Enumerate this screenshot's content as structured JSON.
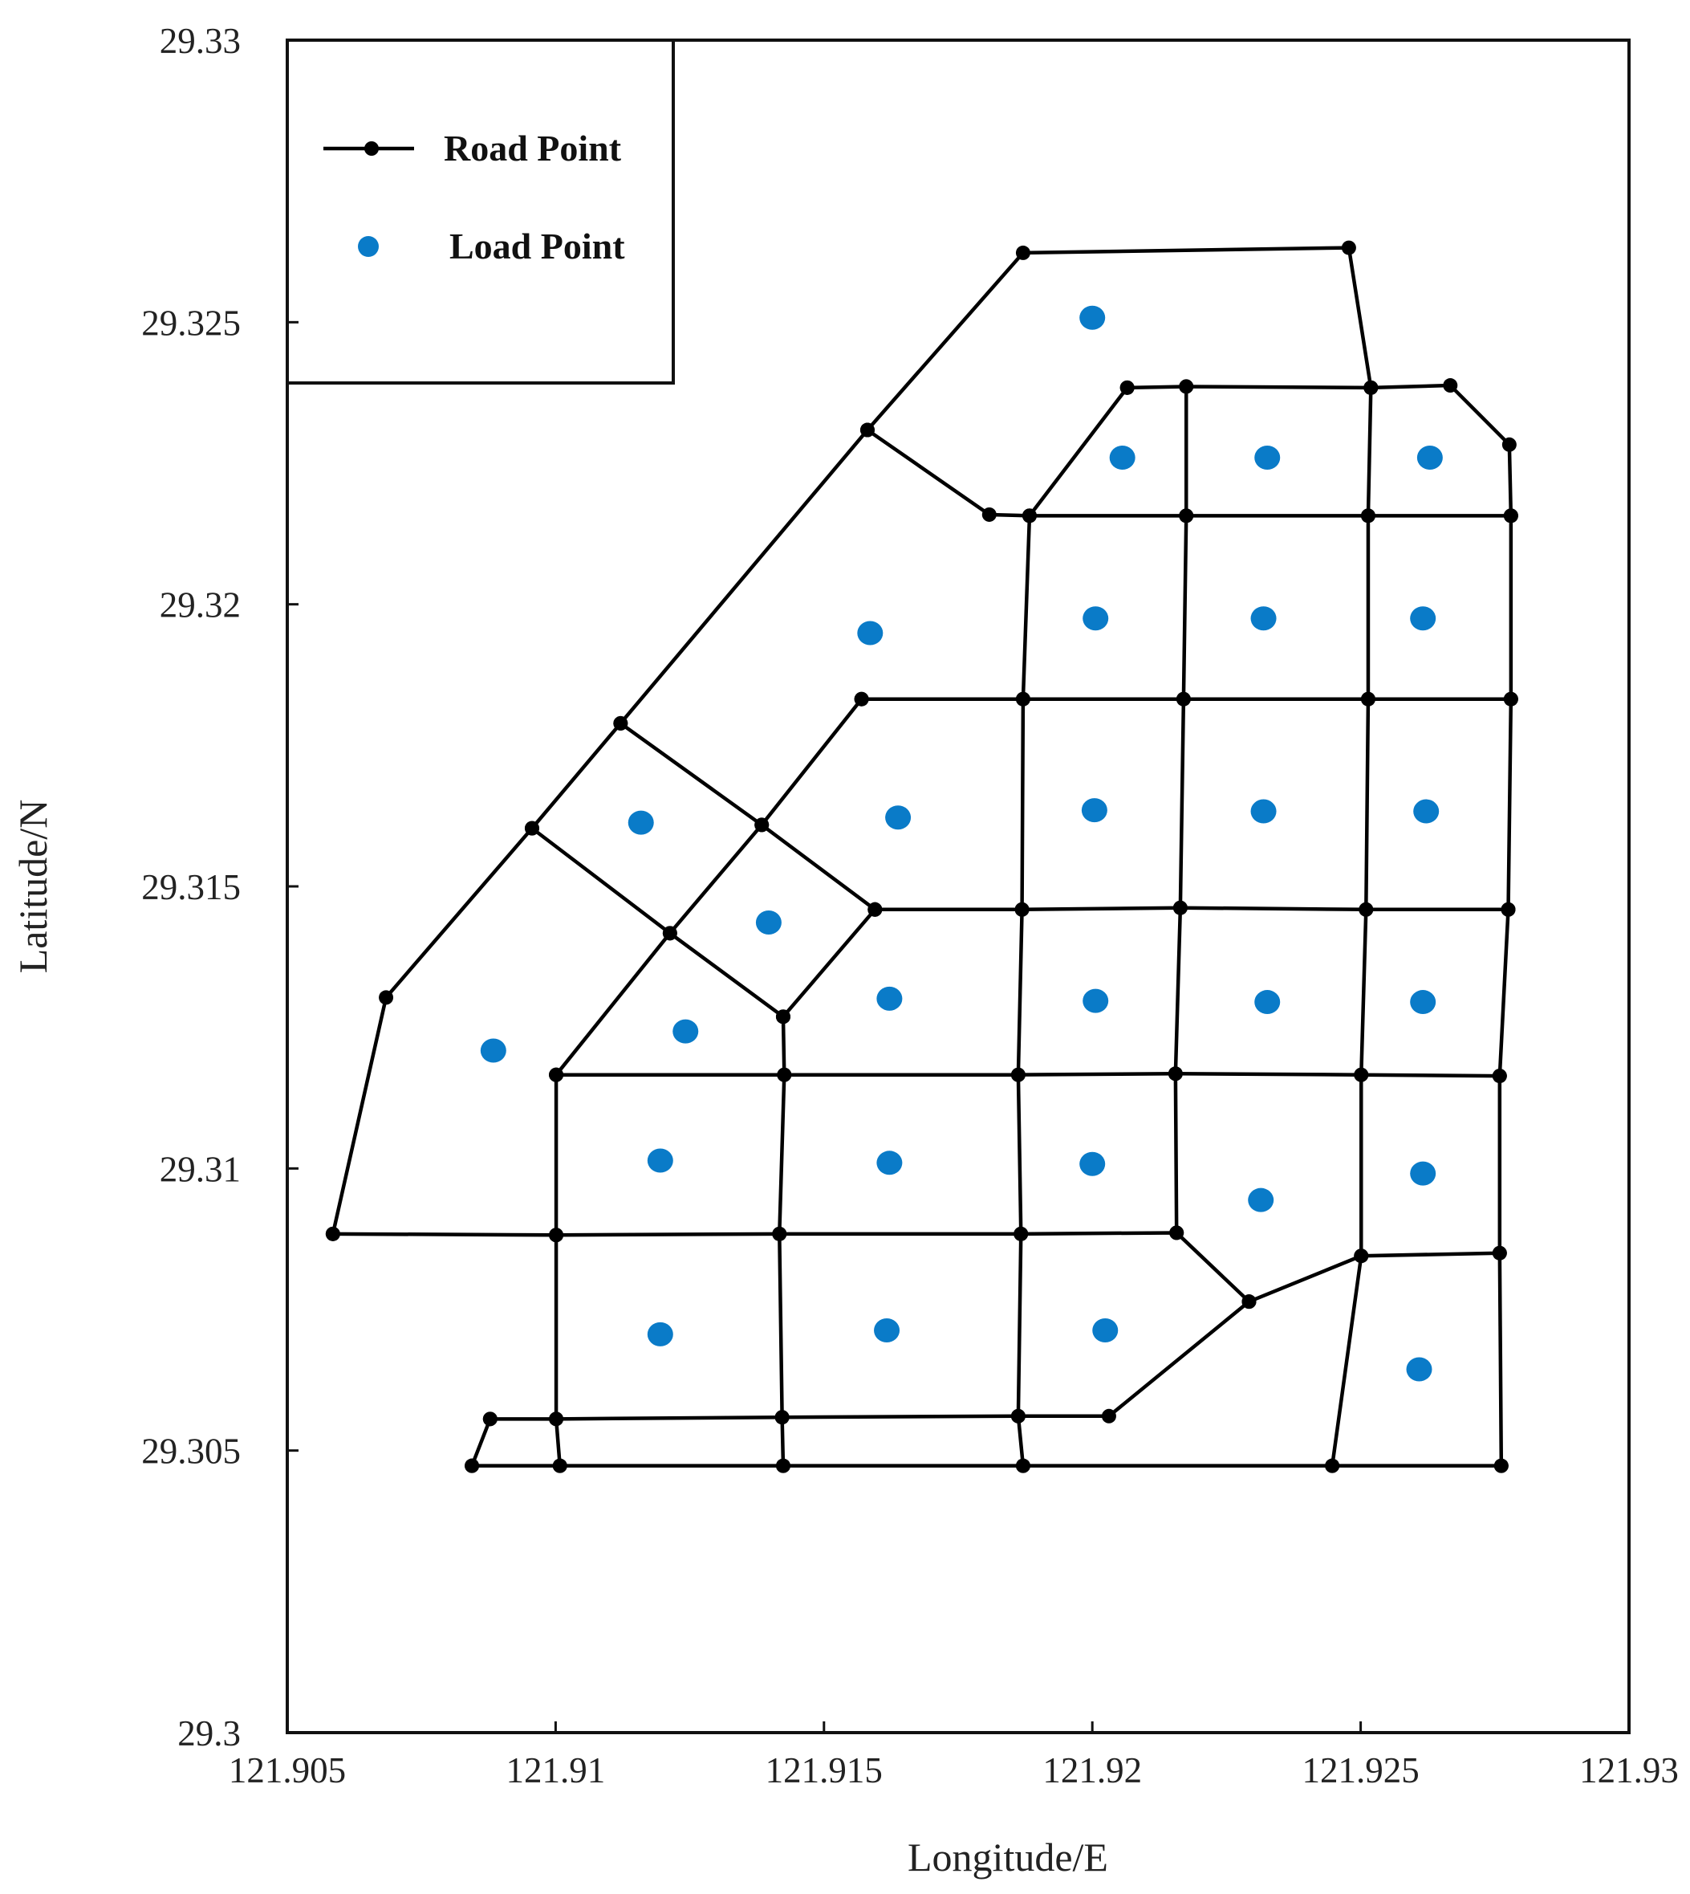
{
  "chart_data": {
    "type": "scatter",
    "xlabel": "Longitude/E",
    "ylabel": "Latitude/N",
    "xlim": [
      121.905,
      121.93
    ],
    "ylim": [
      29.3,
      29.33
    ],
    "xticks": [
      121.905,
      121.91,
      121.915,
      121.92,
      121.925,
      121.93
    ],
    "yticks": [
      29.3,
      29.305,
      29.31,
      29.315,
      29.32,
      29.325,
      29.33
    ],
    "legend": "upper left",
    "roads": {
      "name": "Road Point",
      "color": "#000000",
      "lines": [
        {
          "x": [
            121.90585,
            121.90684,
            121.90956,
            121.91121,
            121.91581,
            121.91871,
            121.92478,
            121.92519
          ],
          "y": [
            29.30884,
            29.31303,
            29.31603,
            29.31789,
            29.32309,
            29.32623,
            29.32632,
            29.32384
          ]
        },
        {
          "x": [
            121.92065,
            121.92175,
            121.92519,
            121.92667,
            121.92777,
            121.9278
          ],
          "y": [
            29.32384,
            29.32386,
            29.32384,
            29.32388,
            29.32283,
            29.32157
          ]
        },
        {
          "x": [
            121.91581,
            121.91808,
            121.91883,
            121.92175,
            121.92514,
            121.9278
          ],
          "y": [
            29.32309,
            29.32159,
            29.32157,
            29.32157,
            29.32157,
            29.32157
          ]
        },
        {
          "x": [
            121.91883,
            121.92065
          ],
          "y": [
            29.32157,
            29.32384
          ]
        },
        {
          "x": [
            121.9157,
            121.91871,
            121.9217,
            121.92514,
            121.9278
          ],
          "y": [
            29.31832,
            29.31832,
            29.31832,
            29.31832,
            29.31832
          ]
        },
        {
          "x": [
            121.91595,
            121.91869,
            121.92164,
            121.9251,
            121.92775
          ],
          "y": [
            29.31459,
            29.31459,
            29.31462,
            29.31459,
            29.31459
          ]
        },
        {
          "x": [
            121.91001,
            121.91426,
            121.91862,
            121.92155,
            121.92501,
            121.92759
          ],
          "y": [
            29.31166,
            29.31166,
            29.31166,
            29.31168,
            29.31166,
            29.31164
          ]
        },
        {
          "x": [
            121.90585,
            121.91001,
            121.91417,
            121.91867,
            121.92157,
            121.92292,
            121.92501,
            121.92759
          ],
          "y": [
            29.30884,
            29.30882,
            29.30884,
            29.30884,
            29.30886,
            29.30764,
            29.30845,
            29.3085
          ]
        },
        {
          "x": [
            121.90878,
            121.91001,
            121.91422,
            121.91862,
            121.92031,
            121.92292
          ],
          "y": [
            29.30556,
            29.30556,
            29.30559,
            29.30561,
            29.30561,
            29.30764
          ]
        },
        {
          "x": [
            121.90844,
            121.91008,
            121.91424,
            121.91871,
            121.92447,
            121.92762
          ],
          "y": [
            29.30473,
            29.30473,
            29.30473,
            29.30473,
            29.30473,
            29.30473
          ]
        },
        {
          "x": [
            121.90844,
            121.90878
          ],
          "y": [
            29.30473,
            29.30556
          ]
        },
        {
          "x": [
            121.90956,
            121.91213,
            121.91424
          ],
          "y": [
            29.31603,
            29.31417,
            29.31269
          ]
        },
        {
          "x": [
            121.91121,
            121.91384,
            121.91595
          ],
          "y": [
            29.31789,
            29.31609,
            29.31459
          ]
        },
        {
          "x": [
            121.9157,
            121.91384,
            121.91213,
            121.91001
          ],
          "y": [
            29.31832,
            29.31609,
            29.31417,
            29.31166
          ]
        },
        {
          "x": [
            121.91595,
            121.91424
          ],
          "y": [
            29.31459,
            29.31269
          ]
        },
        {
          "x": [
            121.91001,
            121.91001,
            121.91001,
            121.91008
          ],
          "y": [
            29.31166,
            29.30882,
            29.30556,
            29.30473
          ]
        },
        {
          "x": [
            121.91424,
            121.91426,
            121.91417,
            121.91422,
            121.91424
          ],
          "y": [
            29.31269,
            29.31166,
            29.30884,
            29.30559,
            29.30473
          ]
        },
        {
          "x": [
            121.91883,
            121.91871,
            121.91869,
            121.91862,
            121.91867,
            121.91862,
            121.91871
          ],
          "y": [
            29.32157,
            29.31832,
            29.31459,
            29.31166,
            29.30884,
            29.30561,
            29.30473
          ]
        },
        {
          "x": [
            121.92175,
            121.92175,
            121.9217,
            121.92164,
            121.92155,
            121.92157
          ],
          "y": [
            29.32386,
            29.32157,
            29.31832,
            29.31462,
            29.31168,
            29.30886
          ]
        },
        {
          "x": [
            121.92519,
            121.92514,
            121.92514,
            121.9251,
            121.92501,
            121.92501,
            121.92447
          ],
          "y": [
            29.32384,
            29.32157,
            29.31832,
            29.31459,
            29.31166,
            29.30845,
            29.30473
          ]
        },
        {
          "x": [
            121.9278,
            121.9278,
            121.92775,
            121.92759,
            121.92759,
            121.92762
          ],
          "y": [
            29.32157,
            29.31832,
            29.31459,
            29.31164,
            29.3085,
            29.30473
          ]
        }
      ]
    },
    "loads": {
      "name": "Load Point",
      "color": "#0a7bc8",
      "x": [
        121.92,
        121.92056,
        121.92326,
        121.92629,
        121.91586,
        121.92006,
        121.92319,
        121.92616,
        121.91159,
        121.91638,
        121.92004,
        121.92319,
        121.92622,
        121.91397,
        121.91622,
        121.92006,
        121.92326,
        121.92616,
        121.90884,
        121.91242,
        121.91195,
        121.91622,
        121.92,
        121.92314,
        121.92616,
        121.91195,
        121.91617,
        121.92024,
        121.92609
      ],
      "y": [
        29.32508,
        29.3226,
        29.3226,
        29.3226,
        29.31949,
        29.31975,
        29.31975,
        29.31975,
        29.31613,
        29.31622,
        29.31635,
        29.31633,
        29.31633,
        29.31436,
        29.31301,
        29.31297,
        29.31295,
        29.31295,
        29.31209,
        29.31243,
        29.31014,
        29.3101,
        29.31008,
        29.30944,
        29.30991,
        29.30706,
        29.30713,
        29.30713,
        29.30644
      ]
    }
  }
}
